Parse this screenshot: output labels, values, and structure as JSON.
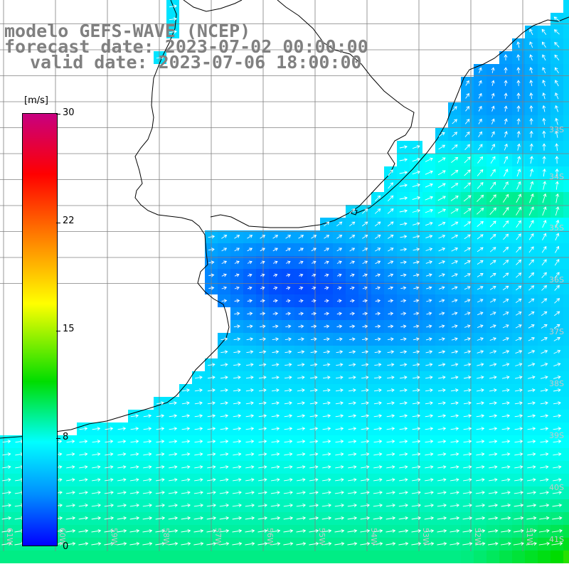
{
  "title": {
    "line1": "modelo GEFS-WAVE (NCEP)",
    "line2": "forecast date: 2023-07-02 00:00:00",
    "line3": "valid date: 2023-07-06 18:00:00"
  },
  "colorbar": {
    "unit": "[m/s]",
    "ticks": [
      "30",
      "22",
      "15",
      "8"
    ],
    "zero_label": "0",
    "range": [
      0,
      30
    ],
    "colors": [
      "#0000ff",
      "#0090ff",
      "#00ffff",
      "#00dd00",
      "#ffff00",
      "#ff7a00",
      "#ff0000",
      "#c80080"
    ]
  },
  "map": {
    "land_color": "#ffffff",
    "coastline_color": "#000000",
    "grid_color": "#808080",
    "arrow_color": "#ffffff",
    "lat_labels": [
      "33S",
      "34S",
      "35S",
      "36S",
      "37S",
      "38S",
      "39S",
      "40S",
      "41S"
    ],
    "lon_labels": [
      "61W",
      "60W",
      "59W",
      "58W",
      "57W",
      "56W",
      "55W",
      "54W",
      "53W",
      "52W",
      "51W"
    ]
  }
}
